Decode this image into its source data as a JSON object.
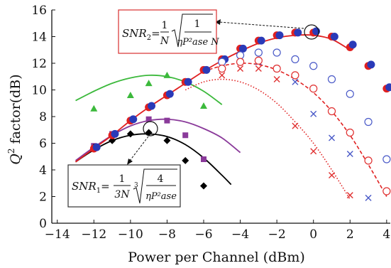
{
  "chart_data": {
    "type": "scatter",
    "title": "",
    "xlabel": "Power per Channel (dBm)",
    "ylabel_prefix": "Q",
    "ylabel_sup": "2",
    "ylabel_suffix": " factor(dB)",
    "xlim": [
      -14.3,
      4.2
    ],
    "ylim": [
      0,
      16
    ],
    "xticks": [
      -14,
      -12,
      -10,
      -8,
      -6,
      -4,
      -2,
      0,
      2,
      4
    ],
    "xtick_labels": [
      "−14",
      "−12",
      "−10",
      "−8",
      "−6",
      "−4",
      "−2",
      "0",
      "2",
      "4"
    ],
    "yticks": [
      0,
      2,
      4,
      6,
      8,
      10,
      12,
      14,
      16
    ],
    "ytick_labels": [
      "0",
      "2",
      "4",
      "6",
      "8",
      "10",
      "12",
      "14",
      "16"
    ],
    "grid": false,
    "series": [
      {
        "marker": "triangle",
        "color": "#3cb93c",
        "points": [
          [
            -12,
            8.6
          ],
          [
            -10,
            9.6
          ],
          [
            -9,
            10.5
          ],
          [
            -8,
            11.1
          ],
          [
            -7,
            10.6
          ],
          [
            -6,
            8.8
          ]
        ]
      },
      {
        "marker": "square",
        "color": "#8a3a9a",
        "points": [
          [
            -12,
            5.8
          ],
          [
            -11,
            6.7
          ],
          [
            -10,
            7.7
          ],
          [
            -9,
            7.8
          ],
          [
            -8,
            7.7
          ],
          [
            -7,
            6.6
          ],
          [
            -6,
            4.8
          ]
        ]
      },
      {
        "marker": "diamond",
        "color": "#000000",
        "points": [
          [
            -12,
            5.7
          ],
          [
            -11,
            6.2
          ],
          [
            -10,
            6.7
          ],
          [
            -9,
            6.8
          ],
          [
            -8,
            6.2
          ],
          [
            -7,
            4.7
          ],
          [
            -6,
            2.8
          ]
        ]
      },
      {
        "marker": "filled-circle",
        "color": "#e02020",
        "points": [
          [
            -12,
            5.6
          ],
          [
            -11,
            6.6
          ],
          [
            -10,
            7.7
          ],
          [
            -9,
            8.7
          ],
          [
            -8,
            9.6
          ],
          [
            -7,
            10.6
          ],
          [
            -6,
            11.5
          ],
          [
            -5,
            12.3
          ],
          [
            -4,
            13.1
          ],
          [
            -3,
            13.7
          ],
          [
            -2,
            14.1
          ],
          [
            -1,
            14.3
          ],
          [
            0,
            14.3
          ],
          [
            1,
            14.0
          ],
          [
            2,
            13.2
          ],
          [
            3,
            11.8
          ],
          [
            4,
            10.1
          ]
        ]
      },
      {
        "marker": "filled-circle",
        "color": "#2a3ab8",
        "offset": 0.15,
        "points": [
          [
            -12,
            5.7
          ],
          [
            -11,
            6.7
          ],
          [
            -10,
            7.8
          ],
          [
            -9,
            8.8
          ],
          [
            -8,
            9.7
          ],
          [
            -7,
            10.6
          ],
          [
            -6,
            11.5
          ],
          [
            -5,
            12.3
          ],
          [
            -4,
            13.1
          ],
          [
            -3,
            13.7
          ],
          [
            -2,
            14.1
          ],
          [
            -1,
            14.3
          ],
          [
            0,
            14.4
          ],
          [
            1,
            14.0
          ],
          [
            2,
            13.4
          ],
          [
            3,
            11.9
          ],
          [
            4,
            10.2
          ]
        ]
      },
      {
        "marker": "open-circle",
        "color": "#4a5ac8",
        "points": [
          [
            -5,
            12.1
          ],
          [
            -4,
            12.6
          ],
          [
            -3,
            12.8
          ],
          [
            -2,
            12.8
          ],
          [
            -1,
            12.3
          ],
          [
            0,
            11.8
          ],
          [
            1,
            10.8
          ],
          [
            2,
            9.7
          ],
          [
            3,
            7.6
          ],
          [
            4,
            4.8
          ]
        ]
      },
      {
        "marker": "x",
        "color": "#4a5ac8",
        "points": [
          [
            -5,
            11.6
          ],
          [
            -4,
            12.1
          ],
          [
            -3,
            12.1
          ],
          [
            -2,
            11.6
          ],
          [
            -1,
            10.6
          ],
          [
            0,
            8.2
          ],
          [
            1,
            6.4
          ],
          [
            2,
            5.2
          ],
          [
            3,
            1.9
          ]
        ]
      },
      {
        "marker": "open-circle",
        "color": "#e03030",
        "points": [
          [
            -5,
            11.6
          ],
          [
            -4,
            12.1
          ],
          [
            -3,
            12.2
          ],
          [
            -2,
            11.6
          ],
          [
            -1,
            11.1
          ],
          [
            0,
            10.1
          ],
          [
            1,
            8.4
          ],
          [
            2,
            6.8
          ],
          [
            3,
            4.7
          ],
          [
            4,
            2.4
          ]
        ]
      },
      {
        "marker": "x",
        "color": "#e03030",
        "points": [
          [
            -5,
            11.1
          ],
          [
            -4,
            11.6
          ],
          [
            -3,
            11.6
          ],
          [
            -2,
            10.8
          ],
          [
            -1,
            7.3
          ],
          [
            0,
            5.4
          ],
          [
            1,
            3.6
          ],
          [
            2,
            2.1
          ]
        ]
      }
    ],
    "curves": [
      {
        "style": "solid",
        "color": "#3cb93c",
        "points": [
          [
            -13,
            9.2
          ],
          [
            -12,
            9.9
          ],
          [
            -11,
            10.5
          ],
          [
            -10,
            10.9
          ],
          [
            -9,
            11.1
          ],
          [
            -8,
            11.0
          ],
          [
            -7,
            10.6
          ],
          [
            -6,
            9.9
          ],
          [
            -5,
            8.9
          ]
        ]
      },
      {
        "style": "solid",
        "color": "#8a3a9a",
        "points": [
          [
            -13,
            4.7
          ],
          [
            -12,
            5.7
          ],
          [
            -11,
            6.6
          ],
          [
            -10,
            7.3
          ],
          [
            -9,
            7.7
          ],
          [
            -8,
            7.8
          ],
          [
            -7,
            7.6
          ],
          [
            -6,
            7.1
          ],
          [
            -5,
            6.4
          ],
          [
            -4,
            5.3
          ]
        ]
      },
      {
        "style": "solid",
        "color": "#000000",
        "points": [
          [
            -13,
            4.6
          ],
          [
            -12,
            5.5
          ],
          [
            -11,
            6.2
          ],
          [
            -10,
            6.6
          ],
          [
            -9,
            6.7
          ],
          [
            -8,
            6.5
          ],
          [
            -7,
            5.9
          ],
          [
            -6,
            4.9
          ],
          [
            -5,
            3.6
          ],
          [
            -4.5,
            2.9
          ]
        ]
      },
      {
        "style": "solid",
        "color": "#e02020",
        "points": [
          [
            -13,
            4.6
          ],
          [
            -12,
            5.6
          ],
          [
            -11,
            6.6
          ],
          [
            -10,
            7.7
          ],
          [
            -9,
            8.7
          ],
          [
            -8,
            9.6
          ],
          [
            -7,
            10.5
          ],
          [
            -6,
            11.4
          ],
          [
            -5,
            12.2
          ],
          [
            -4,
            12.9
          ],
          [
            -3,
            13.5
          ],
          [
            -2,
            13.9
          ],
          [
            -1,
            14.1
          ],
          [
            0,
            14.1
          ],
          [
            1,
            13.8
          ],
          [
            2,
            13.0
          ]
        ]
      },
      {
        "style": "dashed",
        "color": "#e02020",
        "points": [
          [
            -6,
            11.4
          ],
          [
            -5,
            11.8
          ],
          [
            -4,
            12.0
          ],
          [
            -3,
            11.9
          ],
          [
            -2,
            11.5
          ],
          [
            -1,
            10.8
          ],
          [
            0,
            9.8
          ],
          [
            1,
            8.4
          ],
          [
            2,
            6.6
          ],
          [
            3,
            4.4
          ],
          [
            4,
            2.0
          ]
        ]
      },
      {
        "style": "dotted",
        "color": "#e02020",
        "points": [
          [
            -7,
            10.0
          ],
          [
            -6,
            10.6
          ],
          [
            -5,
            10.8
          ],
          [
            -4,
            10.6
          ],
          [
            -3,
            10.0
          ],
          [
            -2,
            9.0
          ],
          [
            -1,
            7.6
          ],
          [
            0,
            6.0
          ],
          [
            1,
            4.0
          ],
          [
            2,
            1.8
          ]
        ]
      }
    ],
    "annotations": [
      {
        "id": "snr2",
        "border": "#d83030",
        "lhs": "SNR",
        "lhs_sub": "2",
        "num": "1",
        "den": "N",
        "rad_num": "1",
        "rad_den": "ηP²ase N"
      },
      {
        "id": "snr1",
        "border": "#333333",
        "lhs": "SNR",
        "lhs_sub": "1",
        "num": "1",
        "den": "3N",
        "root_index": "3",
        "rad_num": "4",
        "rad_den": "ηP²ase"
      }
    ]
  }
}
